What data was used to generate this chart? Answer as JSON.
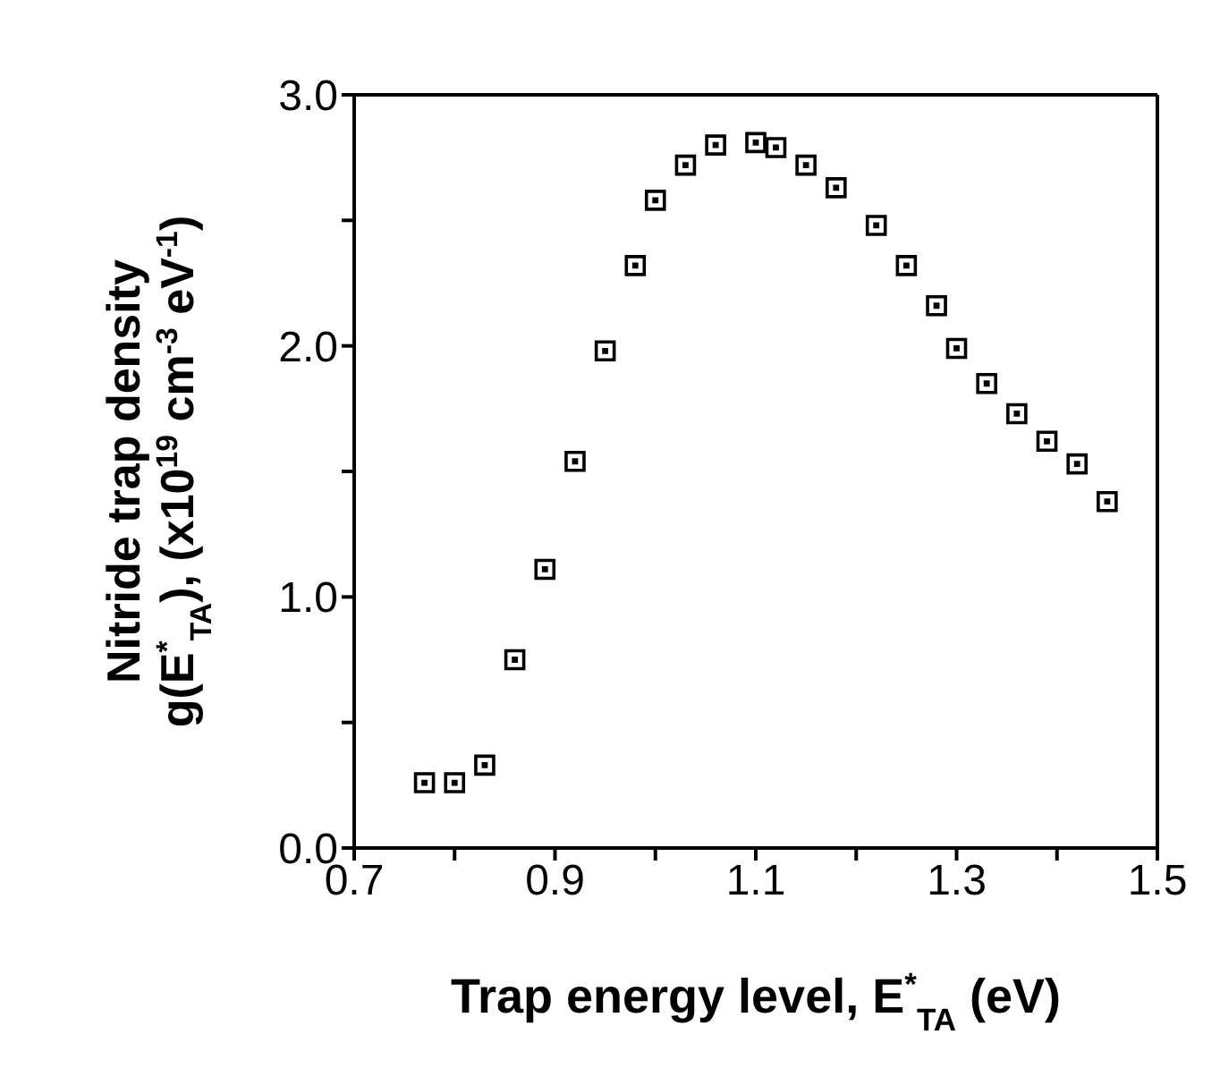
{
  "chart_data": {
    "type": "scatter",
    "xlabel": "Trap energy level, E$^{*}$$_{TA}$ (eV)",
    "ylabel": "Nitride trap density\ng(E$^{*}$$_{TA}$),  (x10$^{19}$ cm$^{-3}$ eV$^{-1}$)",
    "x": [
      0.77,
      0.8,
      0.83,
      0.86,
      0.89,
      0.92,
      0.95,
      0.98,
      1.0,
      1.03,
      1.06,
      1.1,
      1.12,
      1.15,
      1.18,
      1.22,
      1.25,
      1.28,
      1.3,
      1.33,
      1.36,
      1.39,
      1.42,
      1.45
    ],
    "series": [
      {
        "color": "#000000",
        "values": [
          0.26,
          0.26,
          0.33,
          0.75,
          1.11,
          1.54,
          1.98,
          2.32,
          2.58,
          2.72,
          2.8,
          2.81,
          2.79,
          2.72,
          2.63,
          2.48,
          2.32,
          2.16,
          1.99,
          1.85,
          1.73,
          1.62,
          1.53,
          1.38
        ]
      }
    ],
    "xlim": [
      0.7,
      1.5
    ],
    "xticks": [
      0.7,
      {
        "value": 0.8,
        "label": null
      },
      0.9,
      {
        "value": 1.0,
        "label": null
      },
      1.1,
      {
        "value": 1.2,
        "label": null
      },
      1.3,
      {
        "value": 1.4,
        "label": null
      },
      1.5
    ],
    "ylim": [
      0,
      3
    ],
    "yticks": [
      {
        "value": 0,
        "label": "0.0"
      },
      {
        "value": 0.5,
        "label": null
      },
      {
        "value": 1,
        "label": "1.0"
      },
      {
        "value": 1.5,
        "label": null
      },
      {
        "value": 2,
        "label": "2.0"
      },
      {
        "value": 2.5,
        "label": null
      },
      {
        "value": 3,
        "label": "3.0"
      }
    ],
    "marker": "square",
    "legend": false
  }
}
